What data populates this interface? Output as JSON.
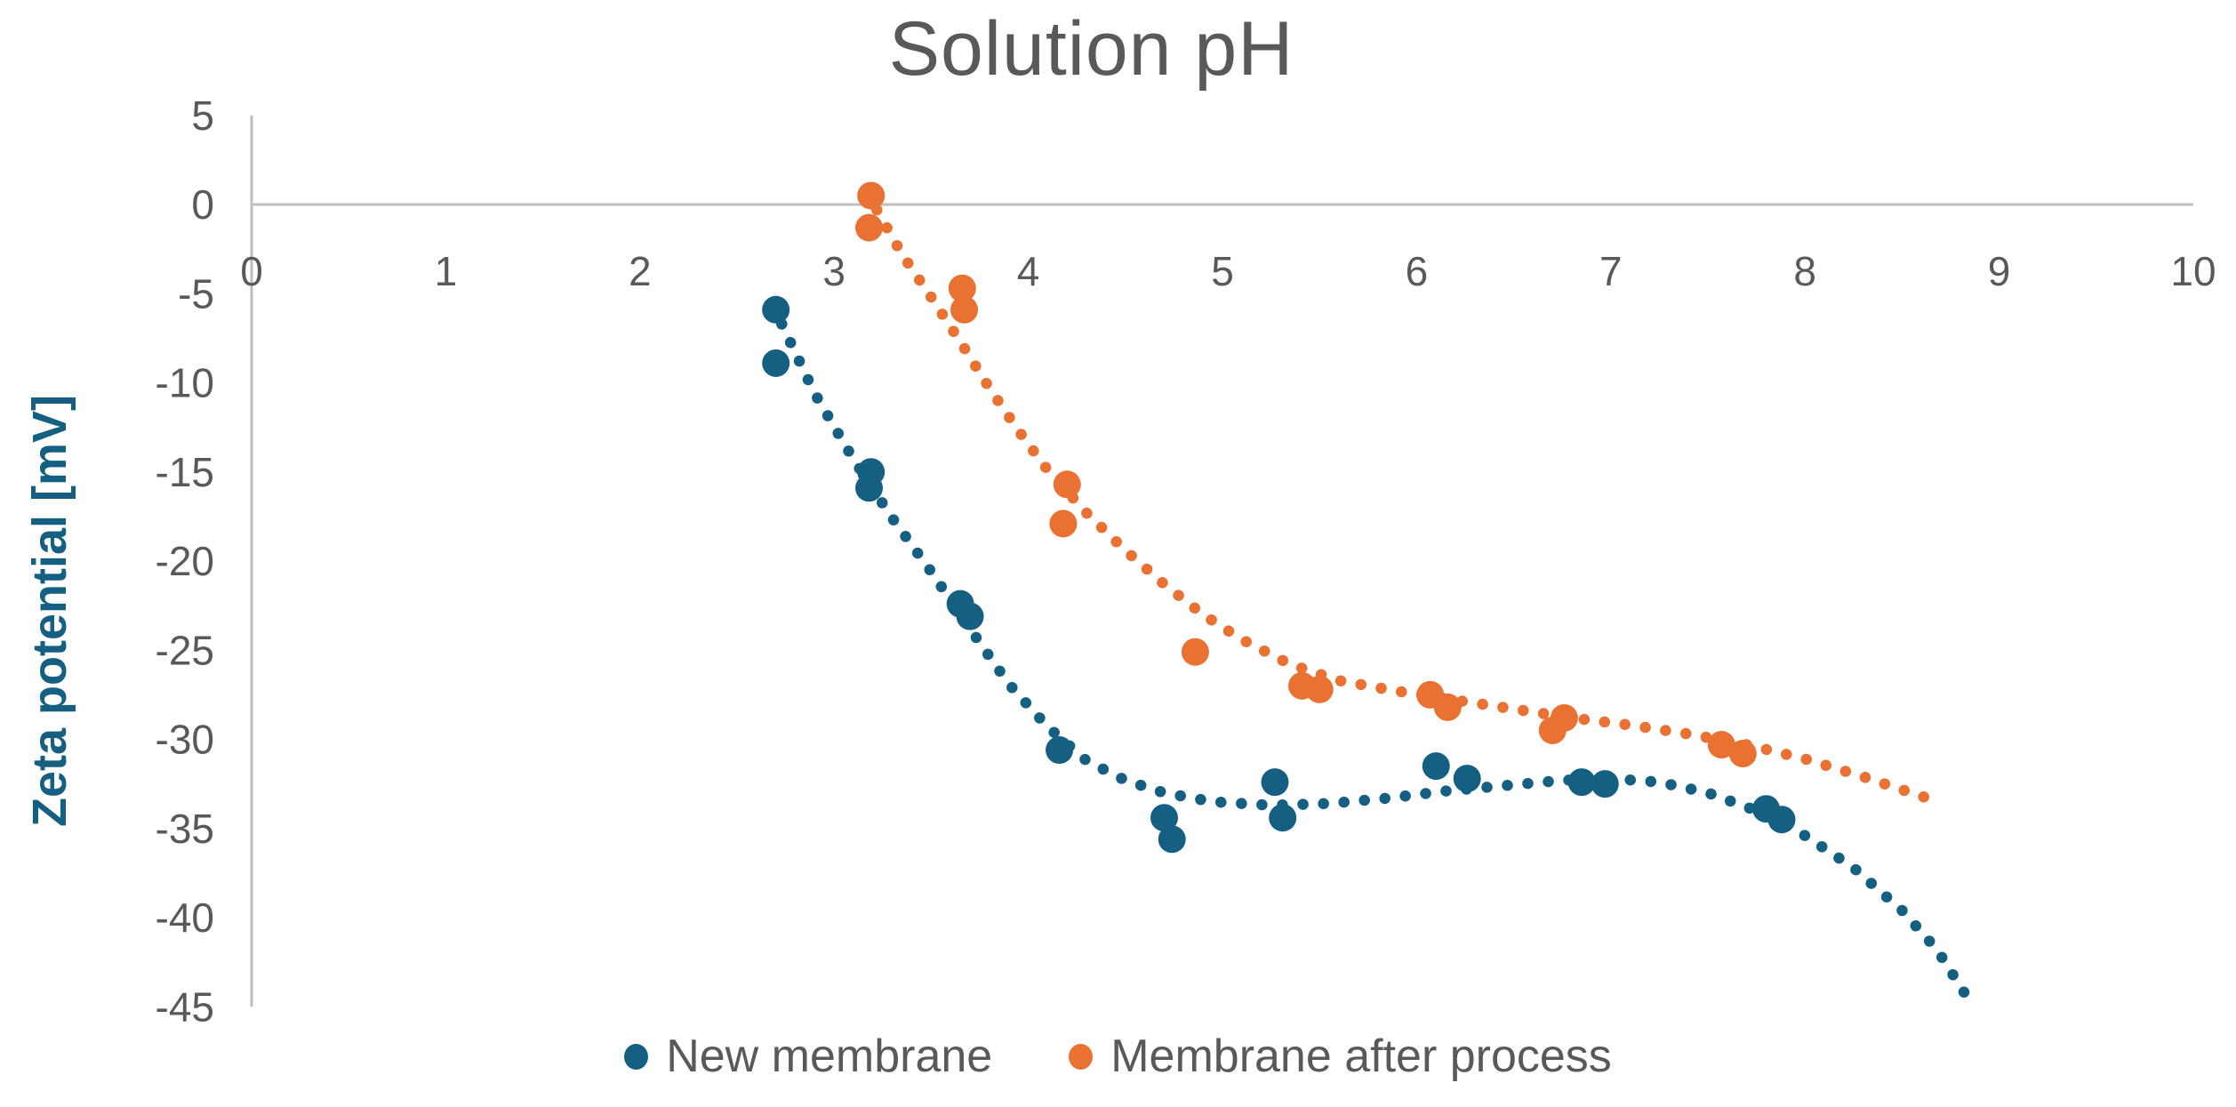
{
  "title": "Solution pH",
  "y_axis_title": "Zeta potential [mV]",
  "colors": {
    "series1": "#156082",
    "series2": "#E97132",
    "axis_line": "#BFBFBF",
    "tick_text": "#595959",
    "title_text": "#595959"
  },
  "legend": {
    "items": [
      {
        "label": "New membrane",
        "color": "#156082"
      },
      {
        "label": "Membrane after process",
        "color": "#E97132"
      }
    ],
    "position": "bottom"
  },
  "chart_data": {
    "type": "scatter",
    "title": "Solution pH",
    "xlabel": "Solution pH",
    "ylabel": "Zeta potential [mV]",
    "xlim": [
      0,
      10
    ],
    "ylim": [
      -45,
      5
    ],
    "x_ticks": [
      0,
      1,
      2,
      3,
      4,
      5,
      6,
      7,
      8,
      9,
      10
    ],
    "y_ticks": [
      5,
      0,
      -5,
      -10,
      -15,
      -20,
      -25,
      -30,
      -35,
      -40,
      -45
    ],
    "grid": "off",
    "legend_position": "bottom",
    "series": [
      {
        "name": "New membrane",
        "color": "#156082",
        "marker": "circle",
        "points": [
          [
            2.7,
            -5.9
          ],
          [
            2.7,
            -8.9
          ],
          [
            3.19,
            -15.0
          ],
          [
            3.18,
            -15.9
          ],
          [
            3.65,
            -22.4
          ],
          [
            3.7,
            -23.1
          ],
          [
            4.16,
            -30.6
          ],
          [
            4.7,
            -34.4
          ],
          [
            4.74,
            -35.6
          ],
          [
            5.27,
            -32.4
          ],
          [
            5.31,
            -34.4
          ],
          [
            6.1,
            -31.5
          ],
          [
            6.26,
            -32.2
          ],
          [
            6.85,
            -32.4
          ],
          [
            6.97,
            -32.5
          ],
          [
            7.8,
            -33.9
          ],
          [
            7.88,
            -34.5
          ]
        ],
        "trendline": {
          "style": "dotted",
          "points": [
            [
              2.73,
              -6.7
            ],
            [
              2.9,
              -10.6
            ],
            [
              3.1,
              -14.3
            ],
            [
              3.3,
              -17.6
            ],
            [
              3.5,
              -20.6
            ],
            [
              3.7,
              -23.8
            ],
            [
              3.9,
              -26.9
            ],
            [
              4.1,
              -29.3
            ],
            [
              4.3,
              -31.2
            ],
            [
              4.5,
              -32.3
            ],
            [
              4.7,
              -33.0
            ],
            [
              4.95,
              -33.5
            ],
            [
              5.25,
              -33.7
            ],
            [
              5.55,
              -33.6
            ],
            [
              5.85,
              -33.3
            ],
            [
              6.15,
              -32.9
            ],
            [
              6.45,
              -32.6
            ],
            [
              6.75,
              -32.3
            ],
            [
              7.0,
              -32.2
            ],
            [
              7.25,
              -32.4
            ],
            [
              7.5,
              -33.0
            ],
            [
              7.75,
              -34.0
            ],
            [
              8.0,
              -35.4
            ],
            [
              8.25,
              -37.2
            ],
            [
              8.5,
              -39.6
            ],
            [
              8.68,
              -41.8
            ],
            [
              8.82,
              -44.2
            ]
          ]
        }
      },
      {
        "name": "Membrane after process",
        "color": "#E97132",
        "marker": "circle",
        "points": [
          [
            3.19,
            0.5
          ],
          [
            3.18,
            -1.3
          ],
          [
            3.66,
            -4.7
          ],
          [
            3.67,
            -5.9
          ],
          [
            4.2,
            -15.7
          ],
          [
            4.18,
            -17.9
          ],
          [
            4.86,
            -25.1
          ],
          [
            5.41,
            -27.0
          ],
          [
            5.5,
            -27.2
          ],
          [
            6.07,
            -27.5
          ],
          [
            6.16,
            -28.2
          ],
          [
            6.76,
            -28.8
          ],
          [
            6.7,
            -29.5
          ],
          [
            7.57,
            -30.3
          ],
          [
            7.68,
            -30.8
          ]
        ],
        "trendline": {
          "style": "dotted",
          "points": [
            [
              3.22,
              -0.3
            ],
            [
              3.35,
              -2.8
            ],
            [
              3.5,
              -5.2
            ],
            [
              3.65,
              -7.7
            ],
            [
              3.8,
              -10.3
            ],
            [
              3.95,
              -12.7
            ],
            [
              4.1,
              -14.9
            ],
            [
              4.3,
              -17.3
            ],
            [
              4.5,
              -19.4
            ],
            [
              4.7,
              -21.3
            ],
            [
              4.9,
              -23.0
            ],
            [
              5.1,
              -24.4
            ],
            [
              5.35,
              -25.8
            ],
            [
              5.6,
              -26.7
            ],
            [
              5.9,
              -27.3
            ],
            [
              6.2,
              -27.8
            ],
            [
              6.5,
              -28.3
            ],
            [
              6.8,
              -28.8
            ],
            [
              7.1,
              -29.2
            ],
            [
              7.4,
              -29.7
            ],
            [
              7.7,
              -30.3
            ],
            [
              8.0,
              -31.1
            ],
            [
              8.3,
              -32.1
            ],
            [
              8.63,
              -33.3
            ]
          ]
        }
      }
    ]
  }
}
